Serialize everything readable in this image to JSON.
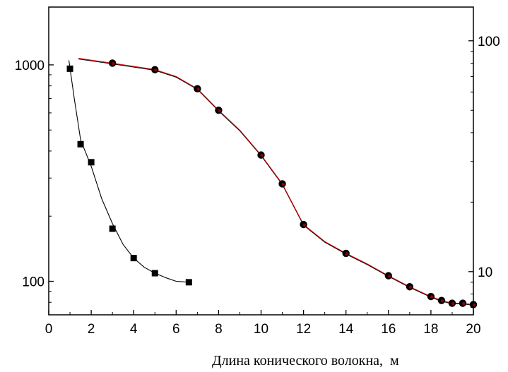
{
  "chart_data": {
    "type": "scatter",
    "title": "",
    "xlabel": "Длина конического волокна,  м",
    "ylabel": "",
    "y2label": "",
    "xlim": [
      0,
      20
    ],
    "ylim_left": [
      70,
      1850
    ],
    "ylim_right": [
      6.5,
      140
    ],
    "y_scale": "log",
    "y2_scale": "log",
    "grid": false,
    "legend": "none",
    "x_ticks": [
      "0",
      "2",
      "4",
      "6",
      "8",
      "10",
      "12",
      "14",
      "16",
      "18",
      "20"
    ],
    "y_ticks_left": [
      {
        "value": 100,
        "label": "100"
      },
      {
        "value": 1000,
        "label": "1000"
      }
    ],
    "y_ticks_right": [
      {
        "value": 10,
        "label": "10"
      },
      {
        "value": 100,
        "label": "100"
      }
    ],
    "series": [
      {
        "axis": "left",
        "marker": "square",
        "color": "#000000",
        "line_color": "#000000",
        "points": [
          [
            1.0,
            960
          ],
          [
            1.5,
            430
          ],
          [
            2.0,
            355
          ],
          [
            3.0,
            175
          ],
          [
            4.0,
            128
          ],
          [
            5.0,
            109
          ],
          [
            6.6,
            99
          ]
        ],
        "curve": [
          [
            0.95,
            1050
          ],
          [
            1.2,
            700
          ],
          [
            1.5,
            450
          ],
          [
            2.0,
            340
          ],
          [
            2.5,
            240
          ],
          [
            3.0,
            185
          ],
          [
            3.5,
            148
          ],
          [
            4.0,
            128
          ],
          [
            4.5,
            116
          ],
          [
            5.0,
            109
          ],
          [
            5.5,
            104
          ],
          [
            6.0,
            100
          ],
          [
            6.6,
            99
          ]
        ]
      },
      {
        "axis": "right",
        "marker": "circle",
        "color": "#000000",
        "line_color": "#cc0000",
        "points": [
          [
            3.0,
            80
          ],
          [
            5.0,
            75
          ],
          [
            7.0,
            62
          ],
          [
            8.0,
            50
          ],
          [
            10.0,
            32
          ],
          [
            11.0,
            24
          ],
          [
            12.0,
            16
          ],
          [
            14.0,
            12
          ],
          [
            16.0,
            9.6
          ],
          [
            17.0,
            8.6
          ],
          [
            18.0,
            7.8
          ],
          [
            18.5,
            7.5
          ],
          [
            19.0,
            7.3
          ],
          [
            19.5,
            7.3
          ],
          [
            20.0,
            7.2
          ]
        ],
        "curve": [
          [
            1.4,
            84
          ],
          [
            3.0,
            80
          ],
          [
            5.0,
            75
          ],
          [
            6.0,
            70
          ],
          [
            7.0,
            62
          ],
          [
            8.0,
            50
          ],
          [
            9.0,
            41
          ],
          [
            10.0,
            32
          ],
          [
            11.0,
            24
          ],
          [
            12.0,
            16
          ],
          [
            13.0,
            13.5
          ],
          [
            14.0,
            12
          ],
          [
            15.0,
            10.8
          ],
          [
            16.0,
            9.6
          ],
          [
            17.0,
            8.6
          ],
          [
            18.0,
            7.8
          ],
          [
            18.5,
            7.5
          ],
          [
            19.0,
            7.3
          ],
          [
            19.5,
            7.3
          ],
          [
            20.0,
            7.2
          ]
        ]
      }
    ]
  }
}
